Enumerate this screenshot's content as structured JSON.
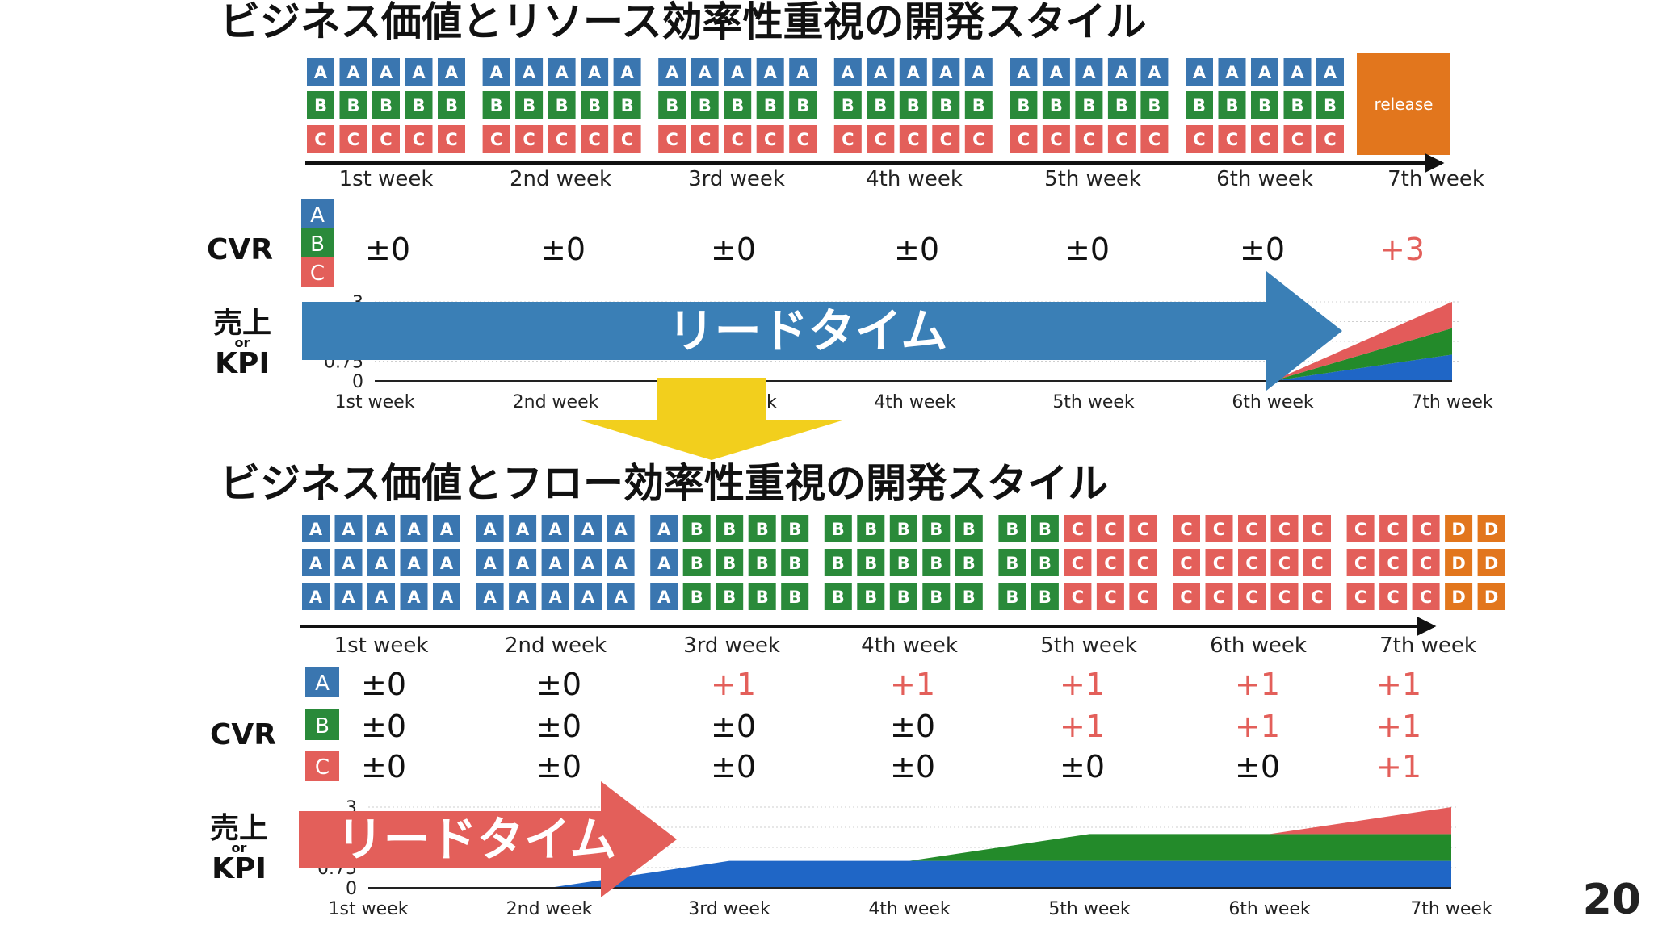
{
  "page_number": "20",
  "colors": {
    "A": "#3a76b0",
    "B": "#2a8a3a",
    "C": "#e35f5a",
    "D": "#e2761d",
    "release": "#e2761d",
    "lead_top": "#3a7fb6",
    "lead_bottom": "#e35f5a",
    "down_arrow": "#f2cf1d",
    "area_blue": "#1f66c6",
    "area_green": "#238a2a",
    "area_red": "#e35b5a"
  },
  "top": {
    "title": "ビジネス価値とリソース効率性重視の開発スタイル",
    "release_label": "release",
    "weeks": [
      "1st week",
      "2nd week",
      "3rd week",
      "4th week",
      "5th week",
      "6th week",
      "7th week"
    ],
    "cvr_label": "CVR",
    "legend": [
      "A",
      "B",
      "C"
    ],
    "cvr_values": [
      "±0",
      "±0",
      "±0",
      "±0",
      "±0",
      "±0",
      "+3"
    ],
    "kpi_label_top": "売上",
    "kpi_label_mid": "or",
    "kpi_label_bottom": "KPI",
    "y_ticks": [
      "3",
      "0.75",
      "0"
    ],
    "chart_weeks": [
      "1st week",
      "2nd week",
      "3rd week",
      "4th week",
      "5th week",
      "6th week",
      "7th week"
    ],
    "lead_time_label": "リードタイム"
  },
  "bottom": {
    "title": "ビジネス価値とフロー効率性重視の開発スタイル",
    "weeks": [
      "1st week",
      "2nd week",
      "3rd week",
      "4th week",
      "5th week",
      "6th week",
      "7th week"
    ],
    "cvr_label": "CVR",
    "legend": [
      "A",
      "B",
      "C"
    ],
    "cvr_A": [
      "±0",
      "±0",
      "+1",
      "+1",
      "+1",
      "+1",
      "+1"
    ],
    "cvr_B": [
      "±0",
      "±0",
      "±0",
      "±0",
      "+1",
      "+1",
      "+1"
    ],
    "cvr_C": [
      "±0",
      "±0",
      "±0",
      "±0",
      "±0",
      "±0",
      "+1"
    ],
    "kpi_label_top": "売上",
    "kpi_label_mid": "or",
    "kpi_label_bottom": "KPI",
    "y_ticks": [
      "3",
      "0.75",
      "0"
    ],
    "chart_weeks": [
      "1st week",
      "2nd week",
      "3rd week",
      "4th week",
      "5th week",
      "6th week",
      "7th week"
    ],
    "lead_time_label": "リードタイム"
  },
  "block_grid_top": [
    [
      "AAAAA",
      "BBBBB",
      "CCCCC"
    ],
    [
      "AAAAA",
      "BBBBB",
      "CCCCC"
    ],
    [
      "AAAAA",
      "BBBBB",
      "CCCCC"
    ],
    [
      "AAAAA",
      "BBBBB",
      "CCCCC"
    ],
    [
      "AAAAA",
      "BBBBB",
      "CCCCC"
    ],
    [
      "AAAAA",
      "BBBBB",
      "CCCCC"
    ]
  ],
  "block_grid_bottom": [
    [
      "AAAAA",
      "AAAAA",
      "AAAAA"
    ],
    [
      "AAAAA",
      "AAAAA",
      "AAAAA"
    ],
    [
      "ABBBB",
      "ABBBB",
      "ABBBB"
    ],
    [
      "BBBBB",
      "BBBBB",
      "BBBBB"
    ],
    [
      "BBCCC",
      "BBCCC",
      "BBCCC"
    ],
    [
      "CCCCC",
      "CCCCC",
      "CCCCC"
    ],
    [
      "CCCDD",
      "CCCDD",
      "CCCDD"
    ]
  ],
  "chart_data": [
    {
      "type": "area",
      "x": [
        "1st week",
        "2nd week",
        "3rd week",
        "4th week",
        "5th week",
        "6th week",
        "7th week"
      ],
      "ylim": [
        0,
        3
      ],
      "series": [
        {
          "name": "A",
          "values": [
            0,
            0,
            0,
            0,
            0,
            0,
            1
          ]
        },
        {
          "name": "B",
          "values": [
            0,
            0,
            0,
            0,
            0,
            0,
            1
          ]
        },
        {
          "name": "C",
          "values": [
            0,
            0,
            0,
            0,
            0,
            0,
            1
          ]
        }
      ]
    },
    {
      "type": "area",
      "x": [
        "1st week",
        "2nd week",
        "3rd week",
        "4th week",
        "5th week",
        "6th week",
        "7th week"
      ],
      "ylim": [
        0,
        3
      ],
      "series": [
        {
          "name": "A",
          "values": [
            0,
            0,
            1,
            1,
            1,
            1,
            1
          ]
        },
        {
          "name": "B",
          "values": [
            0,
            0,
            0,
            0,
            1,
            1,
            1
          ]
        },
        {
          "name": "C",
          "values": [
            0,
            0,
            0,
            0,
            0,
            0,
            1
          ]
        }
      ]
    }
  ]
}
